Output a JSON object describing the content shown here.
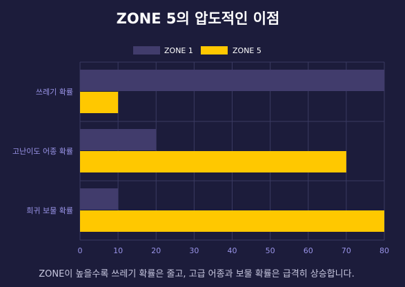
{
  "chart_data": {
    "type": "bar",
    "orientation": "horizontal",
    "title": "ZONE 5의 압도적인 이점",
    "caption": "ZONE이 높을수록 쓰레기 확률은 줄고, 고급 어종과 보물 확률은 급격히 상승합니다.",
    "categories": [
      "쓰레기 확률",
      "고난이도 어종 확률",
      "희귀 보물 확률"
    ],
    "series": [
      {
        "name": "ZONE 1",
        "color": "#413c6c",
        "values": [
          80,
          20,
          10
        ]
      },
      {
        "name": "ZONE 5",
        "color": "#ffc800",
        "values": [
          10,
          70,
          80
        ]
      }
    ],
    "xlim": [
      0,
      80
    ],
    "xticks": [
      0,
      10,
      20,
      30,
      40,
      50,
      60,
      70,
      80
    ],
    "grid": true,
    "legend_position": "top-center"
  },
  "colors": {
    "background": "#1c1c3b",
    "grid": "#3a3a62",
    "axis_text": "#9a94e8",
    "title": "#ffffff",
    "caption": "#c8c8e0",
    "legend_text": "#ffffff"
  }
}
